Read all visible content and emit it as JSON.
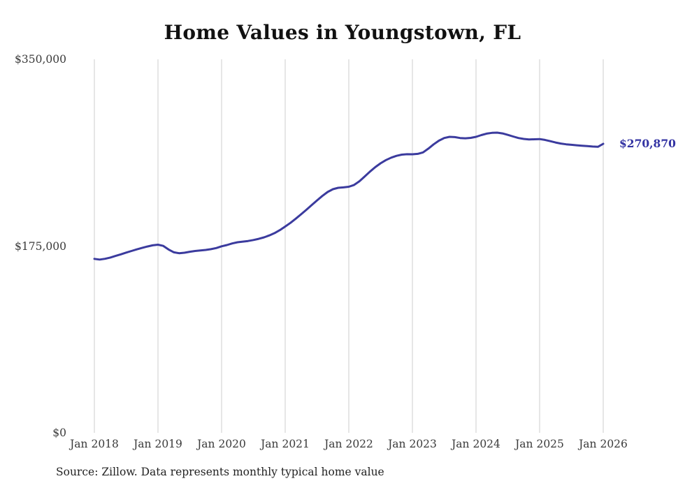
{
  "chart": {
    "line_color": "#3b3b9e",
    "end_label_color": "#3333a3",
    "grid_color": "#cccccc"
  },
  "chart_data": {
    "type": "line",
    "title": "Home Values in Youngstown, FL",
    "source": "Source: Zillow. Data represents monthly typical home value",
    "legend": "none",
    "grid": "vertical-only",
    "ylim": [
      0,
      350000
    ],
    "y_tick_labels": [
      "$350,000",
      "$175,000",
      "$0"
    ],
    "y_tick_values": [
      350000,
      175000,
      0
    ],
    "x_tick_labels": [
      "Jan 2018",
      "Jan 2019",
      "Jan 2020",
      "Jan 2021",
      "Jan 2022",
      "Jan 2023",
      "Jan 2024",
      "Jan 2025",
      "Jan 2026"
    ],
    "x_start": "2018-01",
    "x_end": "2026-01",
    "x_interval": "month",
    "final_value": 270870,
    "final_value_label": "$270,870",
    "values": [
      163000,
      162400,
      163100,
      164300,
      165800,
      167300,
      168900,
      170400,
      171900,
      173300,
      174600,
      175700,
      176300,
      175200,
      171800,
      169200,
      168300,
      168800,
      169700,
      170400,
      170900,
      171400,
      172100,
      173200,
      174800,
      176000,
      177500,
      178600,
      179200,
      179800,
      180700,
      181800,
      183200,
      185000,
      187200,
      190000,
      193300,
      196800,
      200700,
      204800,
      209000,
      213400,
      217800,
      222000,
      225700,
      228300,
      229600,
      230000,
      230600,
      232300,
      235800,
      240200,
      244800,
      249000,
      252600,
      255600,
      257900,
      259600,
      260700,
      261100,
      261000,
      261400,
      262800,
      266300,
      270300,
      273800,
      276300,
      277400,
      277100,
      276300,
      276000,
      276400,
      277400,
      279000,
      280400,
      281100,
      281300,
      280600,
      279200,
      277700,
      276300,
      275400,
      274900,
      275100,
      275300,
      274500,
      273300,
      272100,
      271100,
      270400,
      269900,
      269500,
      269100,
      268700,
      268300,
      268000,
      270870
    ]
  }
}
